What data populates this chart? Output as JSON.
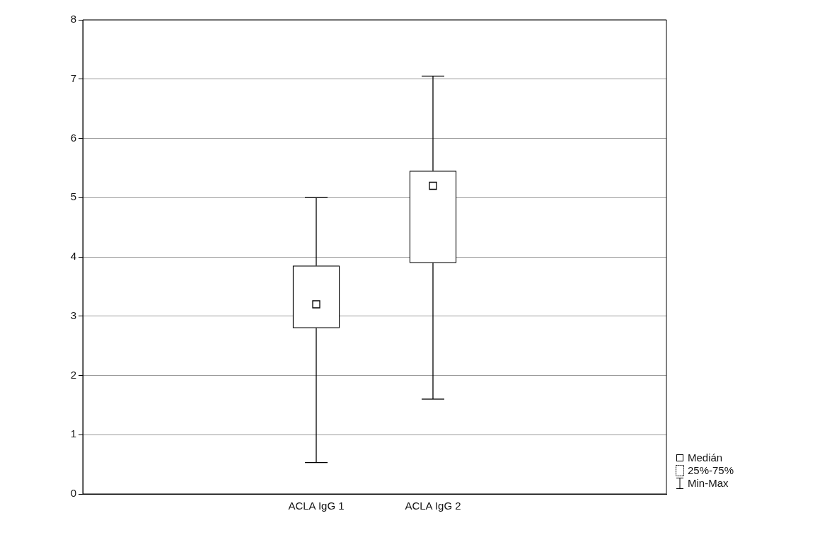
{
  "chart_data": {
    "type": "box",
    "categories": [
      null,
      null,
      "ACLA IgG 1",
      "ACLA IgG 2",
      null,
      null
    ],
    "boxes": [
      null,
      null,
      {
        "low": 0.53,
        "q1": 2.8,
        "median": 3.2,
        "q3": 3.85,
        "high": 5.0
      },
      {
        "low": 1.6,
        "q1": 3.9,
        "median": 5.2,
        "q3": 5.45,
        "high": 7.05
      },
      null,
      null
    ],
    "color": "#000000",
    "ylim": [
      0,
      8
    ],
    "yticks": [
      0,
      1,
      2,
      3,
      4,
      5,
      6,
      7,
      8
    ],
    "grid": "y",
    "annotations": [
      "Medián",
      "25%-75%",
      "Min-Max"
    ]
  }
}
